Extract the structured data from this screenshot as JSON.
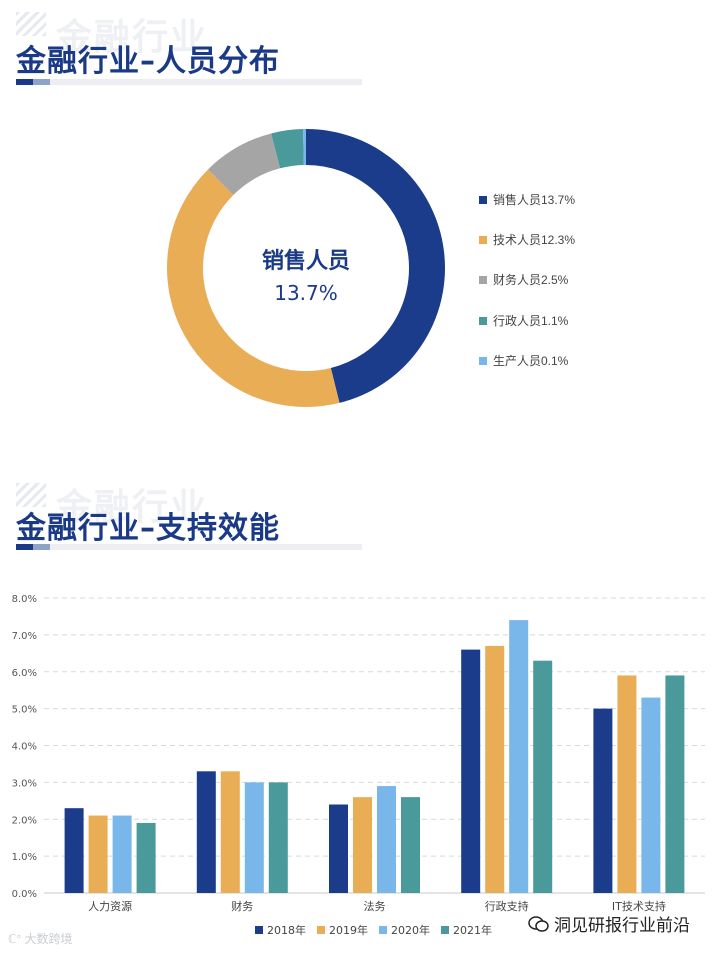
{
  "section1": {
    "watermark": "金融行业",
    "title": "金融行业–人员分布"
  },
  "section2": {
    "watermark": "金融行业",
    "title": "金融行业–支持效能"
  },
  "donut": {
    "center_label": "销售人员",
    "center_value": "13.7%",
    "legend": [
      {
        "label": "销售人员13.7%",
        "color": "#1b3c8a"
      },
      {
        "label": "技术人员12.3%",
        "color": "#e9ad56"
      },
      {
        "label": "财务人员2.5%",
        "color": "#a5a5a5"
      },
      {
        "label": "行政人员1.1%",
        "color": "#4a9a9b"
      },
      {
        "label": "生产人员0.1%",
        "color": "#79b6ea"
      }
    ]
  },
  "chart_data": [
    {
      "type": "pie",
      "categories": [
        "销售人员",
        "技术人员",
        "财务人员",
        "行政人员",
        "生产人员"
      ],
      "values": [
        13.7,
        12.3,
        2.5,
        1.1,
        0.1
      ],
      "title": "",
      "legend_position": "right"
    },
    {
      "type": "bar",
      "categories": [
        "人力资源",
        "财务",
        "法务",
        "行政支持",
        "IT技术支持"
      ],
      "series": [
        {
          "name": "2018年",
          "color": "#1b3c8a",
          "values": [
            2.3,
            3.3,
            2.4,
            6.6,
            5.0
          ]
        },
        {
          "name": "2019年",
          "color": "#e9ad56",
          "values": [
            2.1,
            3.3,
            2.6,
            6.7,
            5.9
          ]
        },
        {
          "name": "2020年",
          "color": "#79b6ea",
          "values": [
            2.1,
            3.0,
            2.9,
            7.4,
            5.3
          ]
        },
        {
          "name": "2021年",
          "color": "#4a9a9b",
          "values": [
            1.9,
            3.0,
            2.6,
            6.3,
            5.9
          ]
        }
      ],
      "y_ticks": [
        "0.0%",
        "1.0%",
        "2.0%",
        "3.0%",
        "4.0%",
        "5.0%",
        "6.0%",
        "7.0%",
        "8.0%"
      ],
      "ylim": [
        0,
        8
      ],
      "grid": true,
      "legend_position": "bottom"
    }
  ],
  "footer": {
    "left_logo": "大数跨境",
    "wechat": "洞见研报行业前沿"
  }
}
